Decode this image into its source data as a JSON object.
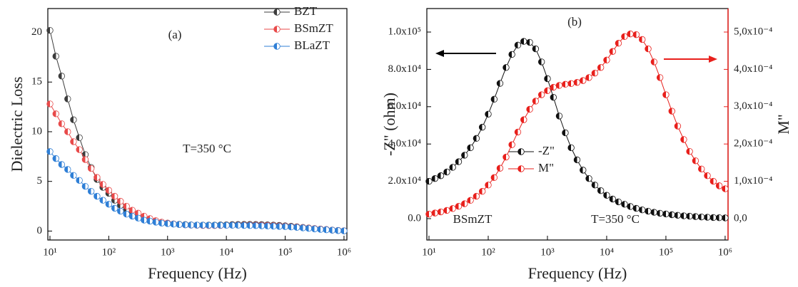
{
  "chart_data": [
    {
      "type": "line",
      "xscale": "log",
      "grid": false,
      "legend": "upper right",
      "xlabel": "Frequency (Hz)",
      "ylabel": "Dielectric Loss",
      "annotations": [
        "(a)",
        "T=350 °C"
      ],
      "xlim": [
        9.2,
        1120000
      ],
      "ylim": [
        -0.9,
        22.4
      ],
      "xticks": [
        {
          "value": 10,
          "label": "10¹"
        },
        {
          "value": 100,
          "label": "10²"
        },
        {
          "value": 1000,
          "label": "10³"
        },
        {
          "value": 10000,
          "label": "10⁴"
        },
        {
          "value": 100000,
          "label": "10⁵"
        },
        {
          "value": 1000000,
          "label": "10⁶"
        }
      ],
      "yticks": [
        0,
        5,
        10,
        15,
        20
      ],
      "x": [
        10,
        12.6,
        15.8,
        20,
        25.1,
        31.6,
        39.8,
        50.1,
        63.1,
        79.4,
        100,
        126,
        158,
        200,
        251,
        316,
        398,
        501,
        631,
        794,
        1000,
        1260,
        1580,
        2000,
        2510,
        3160,
        3980,
        5010,
        6310,
        7940,
        10000,
        12600,
        15800,
        20000,
        25100,
        31600,
        39800,
        50100,
        63100,
        79400,
        100000,
        126000,
        158000,
        200000,
        251000,
        316000,
        398000,
        501000,
        631000,
        794000,
        1000000
      ],
      "series": [
        {
          "name": "BZT",
          "color": "#3c3c3c",
          "values": [
            20.2,
            17.6,
            15.6,
            13.3,
            11.2,
            9.4,
            7.7,
            6.4,
            5.2,
            4.4,
            3.8,
            3.1,
            2.6,
            2.1,
            1.8,
            1.5,
            1.3,
            1.1,
            0.95,
            0.85,
            0.8,
            0.72,
            0.68,
            0.65,
            0.62,
            0.6,
            0.6,
            0.6,
            0.6,
            0.62,
            0.63,
            0.65,
            0.66,
            0.67,
            0.67,
            0.66,
            0.65,
            0.63,
            0.6,
            0.57,
            0.53,
            0.48,
            0.43,
            0.37,
            0.31,
            0.25,
            0.2,
            0.15,
            0.1,
            0.06,
            0.03
          ]
        },
        {
          "name": "BSmZT",
          "color": "#e84a4a",
          "values": [
            12.8,
            11.8,
            10.8,
            10.0,
            9.0,
            8.2,
            7.2,
            6.3,
            5.4,
            4.7,
            4.1,
            3.5,
            3.0,
            2.5,
            2.1,
            1.8,
            1.5,
            1.25,
            1.05,
            0.9,
            0.8,
            0.72,
            0.66,
            0.62,
            0.6,
            0.58,
            0.57,
            0.56,
            0.56,
            0.57,
            0.58,
            0.59,
            0.6,
            0.6,
            0.6,
            0.59,
            0.58,
            0.56,
            0.54,
            0.51,
            0.48,
            0.44,
            0.4,
            0.35,
            0.3,
            0.25,
            0.2,
            0.15,
            0.1,
            0.06,
            0.03
          ]
        },
        {
          "name": "BLaZT",
          "color": "#2f7fd6",
          "values": [
            8.0,
            7.3,
            6.7,
            6.2,
            5.6,
            5.1,
            4.5,
            4.0,
            3.5,
            3.1,
            2.7,
            2.3,
            2.0,
            1.7,
            1.5,
            1.3,
            1.1,
            1.0,
            0.9,
            0.8,
            0.75,
            0.7,
            0.66,
            0.63,
            0.61,
            0.6,
            0.59,
            0.58,
            0.58,
            0.58,
            0.58,
            0.58,
            0.58,
            0.57,
            0.56,
            0.55,
            0.53,
            0.51,
            0.49,
            0.47,
            0.45,
            0.41,
            0.37,
            0.32,
            0.27,
            0.22,
            0.17,
            0.13,
            0.09,
            0.05,
            0.02
          ]
        }
      ]
    },
    {
      "type": "line",
      "xscale": "log",
      "grid": false,
      "legend": "center left",
      "xlabel": "Frequency (Hz)",
      "ylabel": "-Z\" (ohm)",
      "y2label": "M\"",
      "annotations": [
        "(b)",
        "BSmZT",
        "T=350 °C"
      ],
      "xlim": [
        9.2,
        1120000
      ],
      "ylim": [
        -11450,
        112600
      ],
      "y2lim": [
        -5.73e-05,
        0.000563
      ],
      "xticks": [
        {
          "value": 10,
          "label": "10¹"
        },
        {
          "value": 100,
          "label": "10²"
        },
        {
          "value": 1000,
          "label": "10³"
        },
        {
          "value": 10000,
          "label": "10⁴"
        },
        {
          "value": 100000,
          "label": "10⁵"
        },
        {
          "value": 1000000,
          "label": "10⁶"
        }
      ],
      "yticks": [
        {
          "value": 0,
          "label": "0.0"
        },
        {
          "value": 20000,
          "label": "2.0x10⁴"
        },
        {
          "value": 40000,
          "label": "4.0x10⁴"
        },
        {
          "value": 60000,
          "label": "6.0x10⁴"
        },
        {
          "value": 80000,
          "label": "8.0x10⁴"
        },
        {
          "value": 100000,
          "label": "1.0x10⁵"
        }
      ],
      "y2ticks": [
        {
          "value": 0,
          "label": "0,0"
        },
        {
          "value": 0.0001,
          "label": "1,0x10⁻⁴"
        },
        {
          "value": 0.0002,
          "label": "2,0x10⁻⁴"
        },
        {
          "value": 0.0003,
          "label": "3,0x10⁻⁴"
        },
        {
          "value": 0.0004,
          "label": "4,0x10⁻⁴"
        },
        {
          "value": 0.0005,
          "label": "5,0x10⁻⁴"
        }
      ],
      "x": [
        10,
        12.6,
        15.8,
        20,
        25.1,
        31.6,
        39.8,
        50.1,
        63.1,
        79.4,
        100,
        126,
        158,
        200,
        251,
        316,
        398,
        501,
        631,
        794,
        1000,
        1260,
        1580,
        2000,
        2510,
        3160,
        3980,
        5010,
        6310,
        7940,
        10000,
        12600,
        15800,
        20000,
        25100,
        31600,
        39800,
        50100,
        63100,
        79400,
        100000,
        126000,
        158000,
        200000,
        251000,
        316000,
        398000,
        501000,
        631000,
        794000,
        1000000
      ],
      "series": [
        {
          "name": "-Z\"",
          "color": "#111111",
          "values": [
            20000,
            21500,
            23000,
            25000,
            27500,
            30500,
            34000,
            38000,
            43000,
            49000,
            56000,
            64000,
            72500,
            81000,
            88000,
            93000,
            95000,
            94500,
            91000,
            84000,
            75000,
            65000,
            55000,
            46000,
            38000,
            31500,
            26000,
            21500,
            18000,
            15000,
            12500,
            10500,
            9000,
            7700,
            6500,
            5500,
            4700,
            4000,
            3400,
            2900,
            2500,
            2100,
            1800,
            1500,
            1300,
            1100,
            900,
            750,
            600,
            500,
            400
          ]
        },
        {
          "name": "M\"",
          "color": "#e8201c",
          "axis": "y2",
          "values": [
            1.2e-05,
            1.5e-05,
            1.8e-05,
            2.2e-05,
            2.7e-05,
            3.3e-05,
            4e-05,
            4.9e-05,
            6e-05,
            7.3e-05,
            9e-05,
            0.00011,
            0.000135,
            0.000165,
            0.000198,
            0.000232,
            0.000265,
            0.000293,
            0.000315,
            0.000332,
            0.000343,
            0.000352,
            0.000357,
            0.00036,
            0.000362,
            0.000365,
            0.00037,
            0.000378,
            0.00039,
            0.000405,
            0.000425,
            0.000448,
            0.00047,
            0.000488,
            0.000495,
            0.000493,
            0.00048,
            0.000455,
            0.00042,
            0.000378,
            0.000332,
            0.000288,
            0.000248,
            0.000212,
            0.00018,
            0.000155,
            0.000133,
            0.000115,
            0.0001,
            8.8e-05,
            8e-05
          ]
        }
      ]
    }
  ]
}
